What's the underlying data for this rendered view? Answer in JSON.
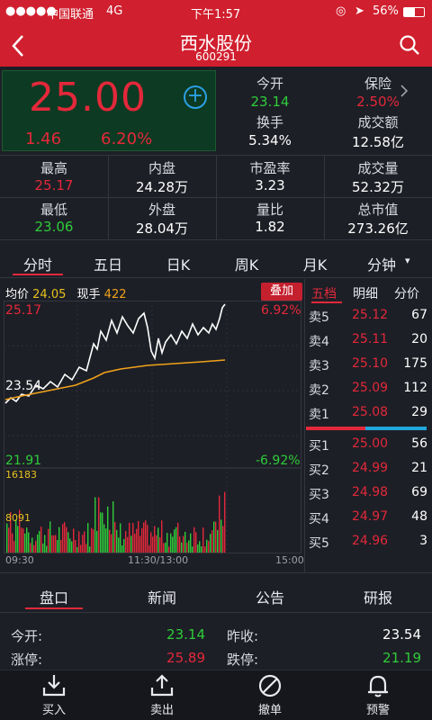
{
  "status_bar": {
    "signal": "●●●●●",
    "carrier": "中国联通",
    "network": "4G",
    "time": "下午1:57",
    "battery": "56%"
  },
  "nav": {
    "title": "西水股份",
    "code": "600291"
  },
  "quote": {
    "price": "25.00",
    "change": "1.46",
    "change_pct": "6.20%",
    "open_label": "今开",
    "open": "23.14",
    "margin_label": "保险",
    "margin": "2.50%",
    "turnover_label": "换手",
    "turnover": "5.34%",
    "amount_label": "成交额",
    "amount": "12.58亿"
  },
  "stats": [
    {
      "label": "最高",
      "value": "25.17",
      "color": "red"
    },
    {
      "label": "内盘",
      "value": "24.28万",
      "color": "white"
    },
    {
      "label": "市盈率",
      "value": "3.23",
      "color": "white"
    },
    {
      "label": "成交量",
      "value": "52.32万",
      "color": "white"
    },
    {
      "label": "最低",
      "value": "23.06",
      "color": "green"
    },
    {
      "label": "外盘",
      "value": "28.04万",
      "color": "white"
    },
    {
      "label": "量比",
      "value": "1.82",
      "color": "white"
    },
    {
      "label": "总市值",
      "value": "273.26亿",
      "color": "white"
    }
  ],
  "chart_tabs": [
    "分时",
    "五日",
    "日K",
    "周K",
    "月K",
    "分钟"
  ],
  "chart_tabs_more_glyph": "▾",
  "intraday": {
    "avg_label": "均价",
    "avg_value": "24.05",
    "vol_label": "现手",
    "vol_value": "422",
    "overlay_label": "叠加",
    "high_price": "25.17",
    "high_pct": "6.92%",
    "prev_close": "23.54",
    "low_price": "21.91",
    "low_pct": "-6.92%",
    "vol_max": "16183",
    "vol_mid": "8091",
    "time_start": "09:30",
    "time_mid": "11:30/13:00",
    "time_end": "15:00"
  },
  "side_tabs": [
    "五档",
    "明细",
    "分价"
  ],
  "asks": [
    {
      "name": "卖5",
      "price": "25.12",
      "qty": "67"
    },
    {
      "name": "卖4",
      "price": "25.11",
      "qty": "20"
    },
    {
      "name": "卖3",
      "price": "25.10",
      "qty": "175"
    },
    {
      "name": "卖2",
      "price": "25.09",
      "qty": "112"
    },
    {
      "name": "卖1",
      "price": "25.08",
      "qty": "29"
    }
  ],
  "bids": [
    {
      "name": "买1",
      "price": "25.00",
      "qty": "56"
    },
    {
      "name": "买2",
      "price": "24.99",
      "qty": "21"
    },
    {
      "name": "买3",
      "price": "24.98",
      "qty": "69"
    },
    {
      "name": "买4",
      "price": "24.97",
      "qty": "48"
    },
    {
      "name": "买5",
      "price": "24.96",
      "qty": "3"
    }
  ],
  "bottom_tabs": [
    "盘口",
    "新闻",
    "公告",
    "研报"
  ],
  "panel": {
    "open_label": "今开:",
    "open": "23.14",
    "prev_label": "昨收:",
    "prev": "23.54",
    "limit_up_label": "涨停:",
    "limit_up": "25.89",
    "limit_down_label": "跌停:",
    "limit_down": "21.19"
  },
  "toolbar": [
    {
      "label": "买入",
      "icon": "buy-icon"
    },
    {
      "label": "卖出",
      "icon": "sell-icon"
    },
    {
      "label": "撤单",
      "icon": "cancel-order-icon"
    },
    {
      "label": "预警",
      "icon": "bell-icon"
    }
  ],
  "colors": {
    "up": "#e3283a",
    "down": "#2fcc3a",
    "brand": "#d01f2e",
    "avg_line": "#f0a21a"
  }
}
